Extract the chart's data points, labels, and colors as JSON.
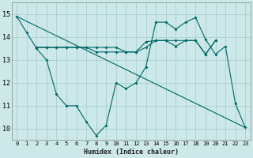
{
  "title": "",
  "xlabel": "Humidex (Indice chaleur)",
  "bg_color": "#cce8e8",
  "grid_color": "#aacfcf",
  "line_color": "#006666",
  "xlim": [
    -0.5,
    23.5
  ],
  "ylim": [
    9.5,
    15.5
  ],
  "xticks": [
    0,
    1,
    2,
    3,
    4,
    5,
    6,
    7,
    8,
    9,
    10,
    11,
    12,
    13,
    14,
    15,
    16,
    17,
    18,
    19,
    20,
    21,
    22,
    23
  ],
  "yticks": [
    10,
    11,
    12,
    13,
    14,
    15
  ],
  "series1_x": [
    0,
    1,
    2,
    3,
    4,
    5,
    6,
    7,
    8,
    9,
    10,
    11,
    12,
    13,
    14,
    15,
    16,
    17,
    18,
    19,
    20,
    21,
    22,
    23
  ],
  "series1_y": [
    14.9,
    14.2,
    13.5,
    13.0,
    11.5,
    11.0,
    11.0,
    10.3,
    9.7,
    10.15,
    12.0,
    11.75,
    12.0,
    12.7,
    14.65,
    14.65,
    14.35,
    14.65,
    14.85,
    13.9,
    13.25,
    13.6,
    11.1,
    10.05
  ],
  "series2_x": [
    2,
    3,
    4,
    5,
    6,
    7,
    8,
    9,
    10,
    11,
    12,
    13,
    14,
    15,
    16,
    17,
    18,
    19,
    20
  ],
  "series2_y": [
    13.55,
    13.55,
    13.55,
    13.55,
    13.55,
    13.55,
    13.55,
    13.55,
    13.55,
    13.35,
    13.35,
    13.8,
    13.85,
    13.85,
    13.85,
    13.85,
    13.85,
    13.25,
    13.85
  ],
  "series3_x": [
    2,
    3,
    4,
    5,
    6,
    7,
    8,
    9,
    10,
    11,
    12,
    13,
    14,
    15,
    16,
    17,
    18,
    19,
    20
  ],
  "series3_y": [
    13.55,
    13.55,
    13.55,
    13.55,
    13.55,
    13.55,
    13.35,
    13.35,
    13.35,
    13.35,
    13.35,
    13.55,
    13.85,
    13.85,
    13.6,
    13.85,
    13.85,
    13.25,
    13.85
  ],
  "series4_x": [
    0,
    23
  ],
  "series4_y": [
    14.9,
    10.05
  ],
  "xlabel_fontsize": 6,
  "tick_fontsize": 5,
  "marker_size": 2.0
}
